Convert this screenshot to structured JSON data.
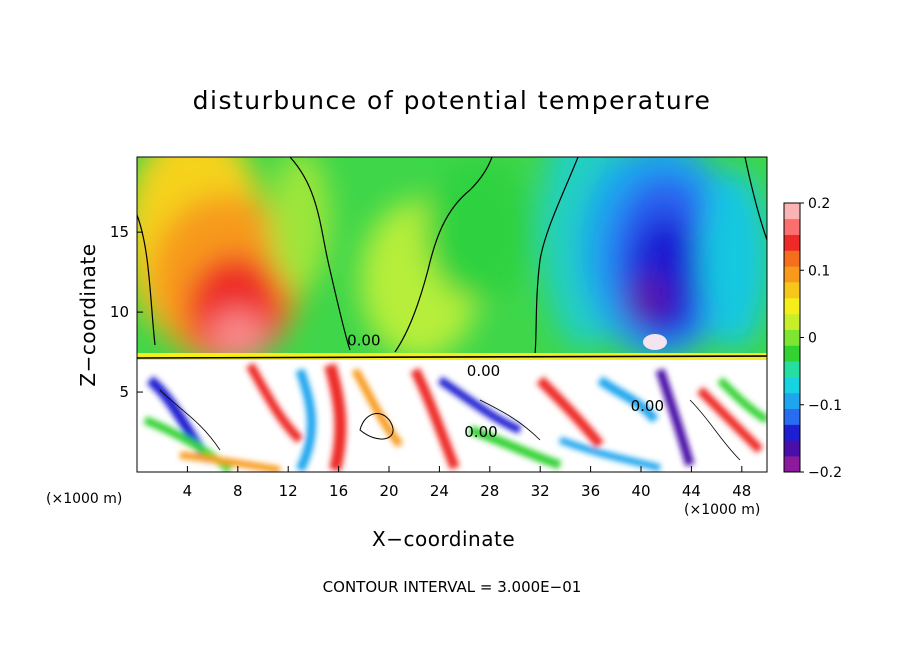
{
  "chart_data": {
    "type": "heatmap",
    "title": "disturbunce of potential temperature",
    "xlabel": "X−coordinate",
    "ylabel": "Z−coordinate",
    "x_unit": "(×1000 m)",
    "x_ticks": [
      4,
      8,
      12,
      16,
      20,
      24,
      28,
      32,
      36,
      40,
      44,
      48
    ],
    "y_ticks": [
      5,
      10,
      15
    ],
    "xlim": [
      0,
      50
    ],
    "ylim": [
      0,
      19.7
    ],
    "colorbar": {
      "ticks": [
        "0.2",
        "0.1",
        "0",
        "−0.1",
        "−0.2"
      ],
      "range": [
        -0.2,
        0.2
      ],
      "colors": [
        "#8b1a9c",
        "#4a0fa8",
        "#1e1ed2",
        "#2a6cf0",
        "#1fa4ee",
        "#17d2e0",
        "#24dfa0",
        "#32d232",
        "#7ee632",
        "#c8ee2a",
        "#f5ee1a",
        "#f7c61a",
        "#f79a1c",
        "#f46e1e",
        "#ee2a28",
        "#fa6e6e",
        "#fbb4b4"
      ]
    },
    "contour_labels": [
      {
        "text": "0.00",
        "x": 18.0,
        "z": 7.9
      },
      {
        "text": "0.00",
        "x": 27.5,
        "z": 6.0
      },
      {
        "text": "0.00",
        "x": 27.3,
        "z": 2.2
      },
      {
        "text": "0.00",
        "x": 40.5,
        "z": 3.8
      }
    ],
    "footer": "CONTOUR INTERVAL = 3.000E−01"
  }
}
